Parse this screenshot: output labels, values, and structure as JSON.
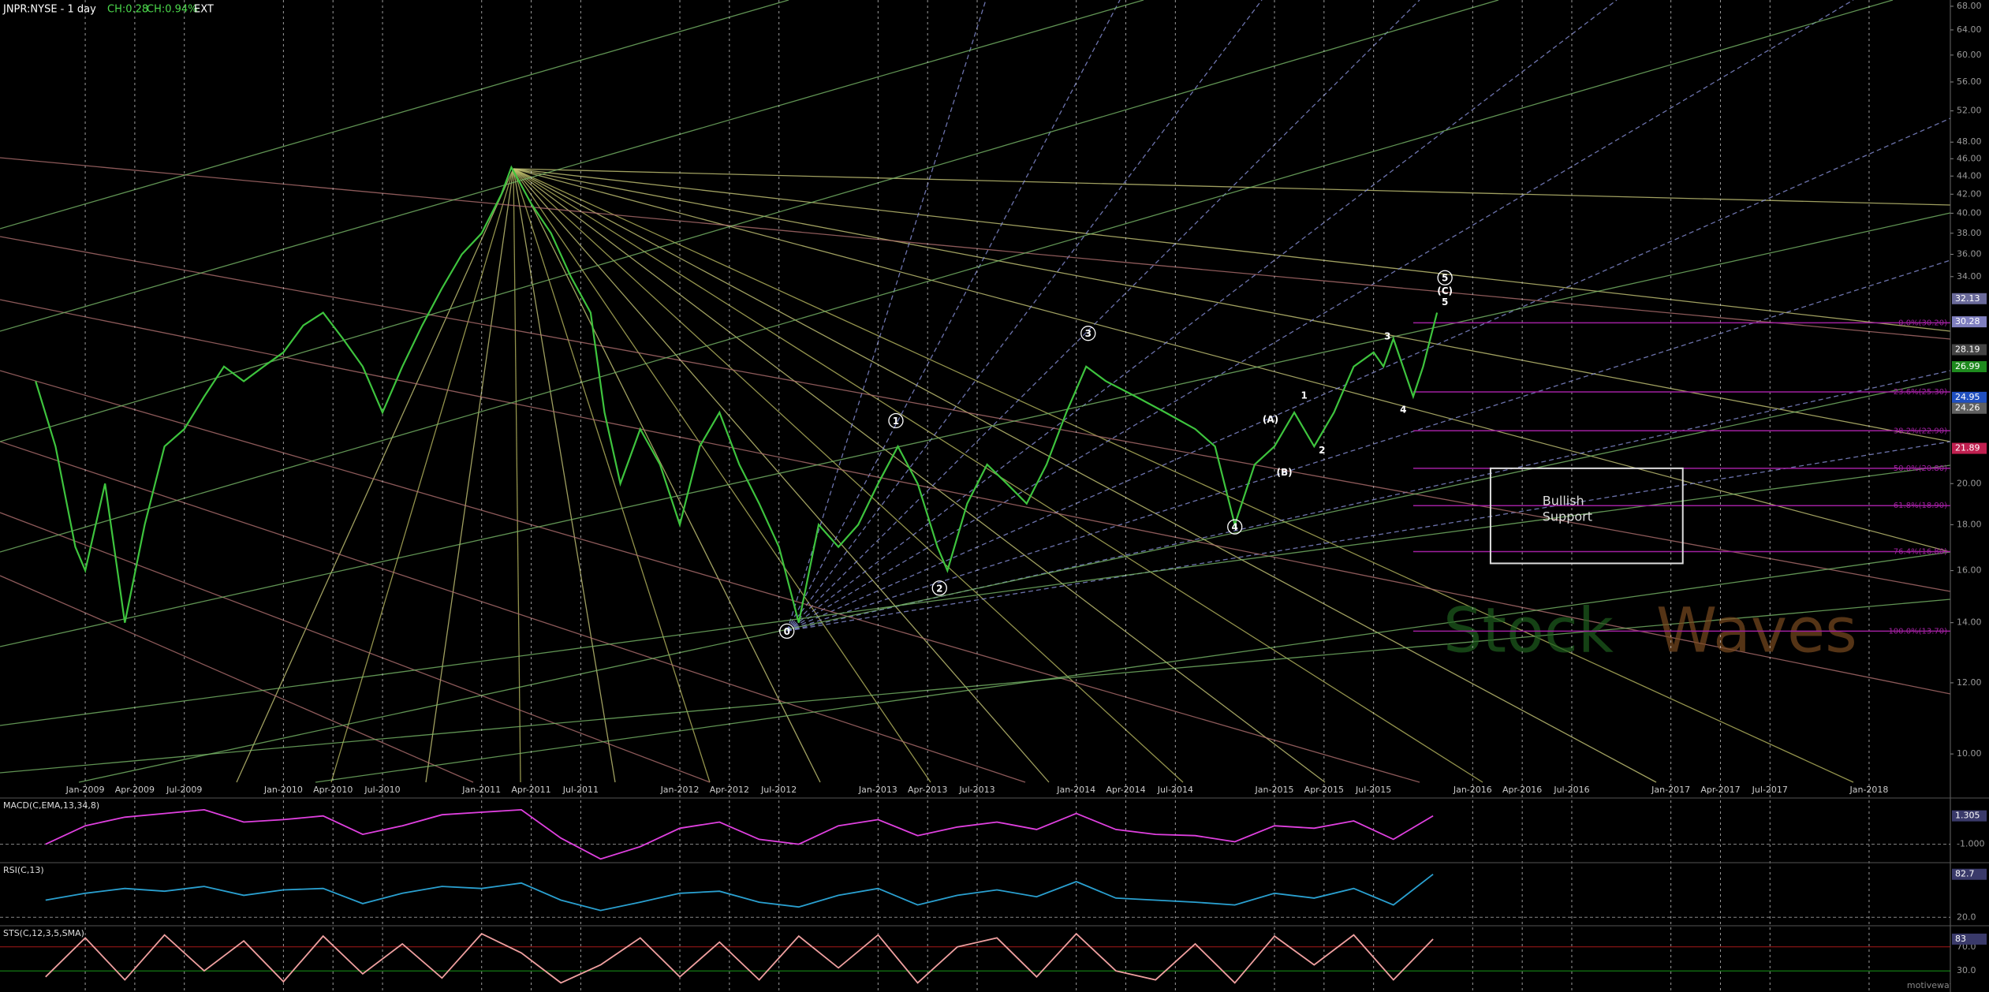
{
  "chart_data": [
    {
      "type": "line",
      "title": "JNPR:NYSE - 1 day",
      "change": "CH:0.28",
      "change_pct": "CH:0.94%",
      "session": "EXT",
      "log_scale": true,
      "color": "#3ec43e",
      "x": [
        2008.75,
        2008.85,
        2008.95,
        2009.0,
        2009.1,
        2009.2,
        2009.3,
        2009.4,
        2009.5,
        2009.6,
        2009.7,
        2009.8,
        2009.9,
        2010.0,
        2010.1,
        2010.2,
        2010.3,
        2010.4,
        2010.5,
        2010.6,
        2010.7,
        2010.8,
        2010.9,
        2011.0,
        2011.1,
        2011.15,
        2011.25,
        2011.35,
        2011.45,
        2011.55,
        2011.62,
        2011.7,
        2011.8,
        2011.9,
        2012.0,
        2012.1,
        2012.2,
        2012.3,
        2012.4,
        2012.5,
        2012.6,
        2012.7,
        2012.8,
        2012.9,
        2013.0,
        2013.1,
        2013.2,
        2013.3,
        2013.35,
        2013.45,
        2013.55,
        2013.65,
        2013.75,
        2013.85,
        2013.95,
        2014.05,
        2014.15,
        2014.3,
        2014.45,
        2014.6,
        2014.7,
        2014.8,
        2014.9,
        2015.0,
        2015.1,
        2015.2,
        2015.3,
        2015.4,
        2015.5,
        2015.55,
        2015.6,
        2015.7,
        2015.75,
        2015.82
      ],
      "values": [
        26,
        22,
        17,
        16,
        20,
        14,
        18,
        22,
        23,
        25,
        27,
        26,
        27,
        28,
        30,
        31,
        29,
        27,
        24,
        27,
        30,
        33,
        36,
        38,
        42,
        45,
        41,
        38,
        34,
        31,
        24,
        20,
        23,
        21,
        18,
        22,
        24,
        21,
        19,
        17,
        14,
        18,
        17,
        18,
        20,
        22,
        20,
        17,
        16,
        19,
        21,
        20,
        19,
        21,
        24,
        27,
        26,
        25,
        24,
        23,
        22,
        18,
        21,
        22,
        24,
        22,
        24,
        27,
        28,
        27,
        29,
        25,
        27,
        31
      ],
      "xlim": [
        2008.57,
        2018.41
      ],
      "ylim": [
        9.3,
        69.1
      ],
      "xticks": [
        {
          "value": 2009,
          "label": "Jan-2009"
        },
        {
          "value": 2009.25,
          "label": "Apr-2009"
        },
        {
          "value": 2009.5,
          "label": "Jul-2009"
        },
        {
          "value": 2010,
          "label": "Jan-2010"
        },
        {
          "value": 2010.25,
          "label": "Apr-2010"
        },
        {
          "value": 2010.5,
          "label": "Jul-2010"
        },
        {
          "value": 2011,
          "label": "Jan-2011"
        },
        {
          "value": 2011.25,
          "label": "Apr-2011"
        },
        {
          "value": 2011.5,
          "label": "Jul-2011"
        },
        {
          "value": 2012,
          "label": "Jan-2012"
        },
        {
          "value": 2012.25,
          "label": "Apr-2012"
        },
        {
          "value": 2012.5,
          "label": "Jul-2012"
        },
        {
          "value": 2013,
          "label": "Jan-2013"
        },
        {
          "value": 2013.25,
          "label": "Apr-2013"
        },
        {
          "value": 2013.5,
          "label": "Jul-2013"
        },
        {
          "value": 2014,
          "label": "Jan-2014"
        },
        {
          "value": 2014.25,
          "label": "Apr-2014"
        },
        {
          "value": 2014.5,
          "label": "Jul-2014"
        },
        {
          "value": 2015,
          "label": "Jan-2015"
        },
        {
          "value": 2015.25,
          "label": "Apr-2015"
        },
        {
          "value": 2015.5,
          "label": "Jul-2015"
        },
        {
          "value": 2016,
          "label": "Jan-2016"
        },
        {
          "value": 2016.25,
          "label": "Apr-2016"
        },
        {
          "value": 2016.5,
          "label": "Jul-2016"
        },
        {
          "value": 2017,
          "label": "Jan-2017"
        },
        {
          "value": 2017.25,
          "label": "Apr-2017"
        },
        {
          "value": 2017.5,
          "label": "Jul-2017"
        },
        {
          "value": 2018,
          "label": "Jan-2018"
        }
      ],
      "yticks": [
        {
          "value": 68,
          "label": "68.00"
        },
        {
          "value": 64,
          "label": "64.00"
        },
        {
          "value": 60,
          "label": "60.00"
        },
        {
          "value": 56,
          "label": "56.00"
        },
        {
          "value": 52,
          "label": "52.00"
        },
        {
          "value": 48,
          "label": "48.00"
        },
        {
          "value": 46,
          "label": "46.00"
        },
        {
          "value": 44,
          "label": "44.00"
        },
        {
          "value": 42,
          "label": "42.00"
        },
        {
          "value": 40,
          "label": "40.00"
        },
        {
          "value": 38,
          "label": "38.00"
        },
        {
          "value": 36,
          "label": "36.00"
        },
        {
          "value": 34,
          "label": "34.00"
        },
        {
          "value": 20,
          "label": "20.00"
        },
        {
          "value": 18,
          "label": "18.00"
        },
        {
          "value": 16,
          "label": "16.00"
        },
        {
          "value": 14,
          "label": "14.00"
        },
        {
          "value": 12,
          "label": "12.00"
        },
        {
          "value": 10,
          "label": "10.00"
        }
      ],
      "price_tags": [
        32.13,
        30.28,
        28.19,
        26.99,
        24.95,
        24.26,
        21.89
      ],
      "price_tag_colors": [
        "#6a6a9a",
        "#8080c0",
        "#444444",
        "#1e8a1e",
        "#2050c0",
        "#606060",
        "#c02050"
      ],
      "fib_levels": [
        {
          "value": 30.2,
          "label": "0.0%(30.20)"
        },
        {
          "value": 25.3,
          "label": "23.6%(25.30)"
        },
        {
          "value": 22.9,
          "label": "38.2%(22.90)"
        },
        {
          "value": 20.8,
          "label": "50.0%(20.80)"
        },
        {
          "value": 18.9,
          "label": "61.8%(18.90)"
        },
        {
          "value": 16.8,
          "label": "76.4%(16.80)"
        },
        {
          "value": 13.7,
          "label": "100.0%(13.70)"
        }
      ],
      "fib_color": "#a020a0",
      "annotations": [
        {
          "text": "0",
          "x": 2012.54,
          "y": 13.7,
          "circled": true
        },
        {
          "text": "1",
          "x": 2013.09,
          "y": 23.5,
          "circled": true
        },
        {
          "text": "2",
          "x": 2013.31,
          "y": 15.3,
          "circled": true
        },
        {
          "text": "3",
          "x": 2014.06,
          "y": 29.4,
          "circled": true
        },
        {
          "text": "4",
          "x": 2014.8,
          "y": 17.9,
          "circled": true
        },
        {
          "text": "(A)",
          "x": 2014.98,
          "y": 23.6,
          "circled": false
        },
        {
          "text": "(B)",
          "x": 2015.05,
          "y": 20.6,
          "circled": false
        },
        {
          "text": "1",
          "x": 2015.15,
          "y": 25.1,
          "circled": false
        },
        {
          "text": "2",
          "x": 2015.24,
          "y": 21.8,
          "circled": false
        },
        {
          "text": "3",
          "x": 2015.57,
          "y": 29.2,
          "circled": false
        },
        {
          "text": "4",
          "x": 2015.65,
          "y": 24.2,
          "circled": false
        },
        {
          "text": "5",
          "x": 2015.86,
          "y": 33.9,
          "circled": true
        },
        {
          "text": "(C)",
          "x": 2015.86,
          "y": 32.8,
          "circled": false
        },
        {
          "text": "5",
          "x": 2015.86,
          "y": 31.9,
          "circled": false
        }
      ],
      "box": {
        "x": [
          2016.09,
          2017.06
        ],
        "y": [
          16.3,
          20.8
        ],
        "text": [
          "Bullish",
          "Support"
        ]
      },
      "watermark": [
        "Stock",
        "Waves"
      ]
    },
    {
      "type": "line",
      "title": "MACD(C,EMA,13,34,8)",
      "color": "#e040e0",
      "x": [
        2008.8,
        2009,
        2009.2,
        2009.4,
        2009.6,
        2009.8,
        2010,
        2010.2,
        2010.4,
        2010.6,
        2010.8,
        2011,
        2011.2,
        2011.4,
        2011.6,
        2011.8,
        2012,
        2012.2,
        2012.4,
        2012.6,
        2012.8,
        2013,
        2013.2,
        2013.4,
        2013.6,
        2013.8,
        2014,
        2014.2,
        2014.4,
        2014.6,
        2014.8,
        2015,
        2015.2,
        2015.4,
        2015.6,
        2015.8
      ],
      "values": [
        -1,
        0.5,
        1.2,
        1.5,
        1.8,
        0.8,
        1.0,
        1.3,
        -0.2,
        0.5,
        1.4,
        1.6,
        1.8,
        -0.5,
        -2.2,
        -1.2,
        0.3,
        0.8,
        -0.6,
        -1.0,
        0.5,
        1.0,
        -0.3,
        0.4,
        0.8,
        0.2,
        1.5,
        0.2,
        -0.2,
        -0.3,
        -0.8,
        0.5,
        0.3,
        0.9,
        -0.6,
        1.305
      ],
      "ylim": [
        -2.5,
        2.5
      ],
      "yticks": [
        {
          "value": -1,
          "label": "-1.000"
        }
      ],
      "tag": 1.305
    },
    {
      "type": "line",
      "title": "RSI(C,13)",
      "color": "#2aa0d0",
      "x": [
        2008.8,
        2009,
        2009.2,
        2009.4,
        2009.6,
        2009.8,
        2010,
        2010.2,
        2010.4,
        2010.6,
        2010.8,
        2011,
        2011.2,
        2011.4,
        2011.6,
        2011.8,
        2012,
        2012.2,
        2012.4,
        2012.6,
        2012.8,
        2013,
        2013.2,
        2013.4,
        2013.6,
        2013.8,
        2014,
        2014.2,
        2014.4,
        2014.6,
        2014.8,
        2015,
        2015.2,
        2015.4,
        2015.6,
        2015.8
      ],
      "values": [
        45,
        55,
        62,
        58,
        65,
        52,
        60,
        62,
        40,
        55,
        65,
        62,
        70,
        45,
        30,
        42,
        55,
        58,
        42,
        35,
        52,
        62,
        38,
        52,
        60,
        50,
        72,
        48,
        45,
        42,
        38,
        55,
        48,
        62,
        38,
        82.7
      ],
      "ylim": [
        10,
        95
      ],
      "yticks": [
        {
          "value": 20,
          "label": "20.0"
        }
      ],
      "tag": 82.7
    },
    {
      "type": "line",
      "title": "STS(C,12,3,5,SMA)",
      "color": "#f0a0a0",
      "x": [
        2008.8,
        2009,
        2009.2,
        2009.4,
        2009.6,
        2009.8,
        2010,
        2010.2,
        2010.4,
        2010.6,
        2010.8,
        2011,
        2011.2,
        2011.4,
        2011.6,
        2011.8,
        2012,
        2012.2,
        2012.4,
        2012.6,
        2012.8,
        2013,
        2013.2,
        2013.4,
        2013.6,
        2013.8,
        2014,
        2014.2,
        2014.4,
        2014.6,
        2014.8,
        2015,
        2015.2,
        2015.4,
        2015.6,
        2015.8
      ],
      "values": [
        20,
        85,
        15,
        90,
        30,
        80,
        12,
        88,
        25,
        75,
        18,
        92,
        60,
        10,
        40,
        85,
        20,
        78,
        15,
        88,
        35,
        90,
        10,
        70,
        85,
        20,
        92,
        30,
        15,
        75,
        10,
        88,
        40,
        90,
        15,
        83
      ],
      "ylim": [
        0,
        100
      ],
      "yticks": [
        {
          "value": 70,
          "label": "70.0"
        },
        {
          "value": 30,
          "label": "30.0"
        }
      ],
      "tick_colors": [
        "#d02020",
        "#20c020"
      ],
      "tag": 83
    }
  ],
  "footer": "motivewave.com"
}
